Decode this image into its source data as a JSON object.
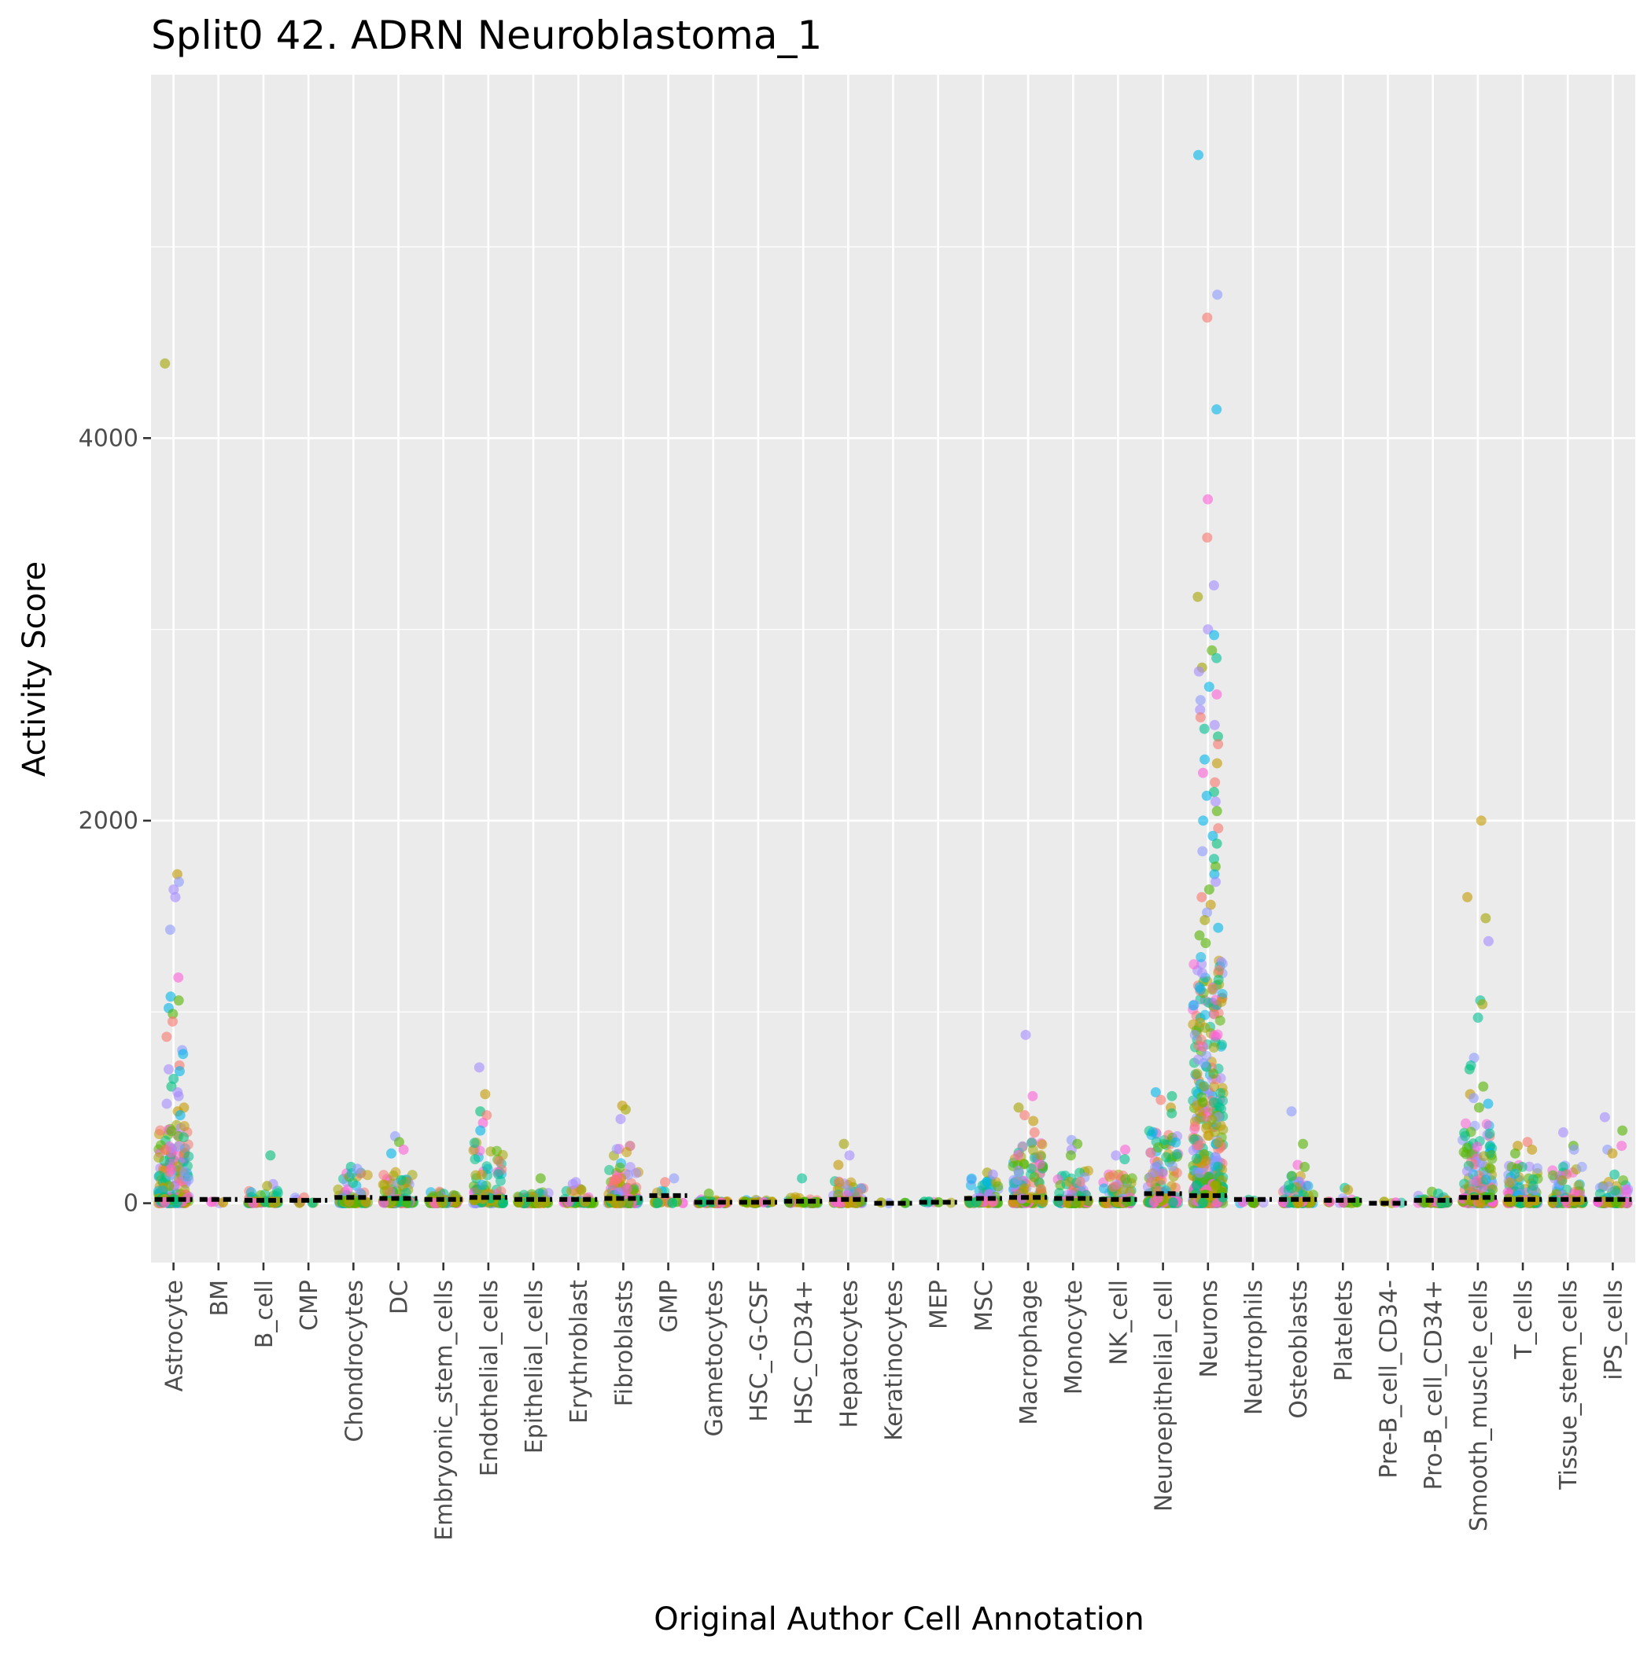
{
  "chart_data": {
    "type": "scatter",
    "subtype": "jitter-strip",
    "title": "Split0 42. ADRN Neuroblastoma_1",
    "xlabel": "Original Author Cell Annotation",
    "ylabel": "Activity Score",
    "ylim": [
      -310,
      5900
    ],
    "yticks": [
      0,
      2000,
      4000
    ],
    "grid": true,
    "legend": "none",
    "panel_background": "#ebebeb",
    "palette": [
      "#f8766d",
      "#c49a00",
      "#53b400",
      "#00c094",
      "#00b6eb",
      "#a58aff",
      "#fb61d7",
      "#8d9bff",
      "#a3a500",
      "#00bf7d"
    ],
    "categories": [
      "Astrocyte",
      "BM",
      "B_cell",
      "CMP",
      "Chondrocytes",
      "DC",
      "Embryonic_stem_cells",
      "Endothelial_cells",
      "Epithelial_cells",
      "Erythroblast",
      "Fibroblasts",
      "GMP",
      "Gametocytes",
      "HSC_-G-CSF",
      "HSC_CD34+",
      "Hepatocytes",
      "Keratinocytes",
      "MEP",
      "MSC",
      "Macrophage",
      "Monocyte",
      "NK_cell",
      "Neuroepithelial_cell",
      "Neurons",
      "Neutrophils",
      "Osteoblasts",
      "Platelets",
      "Pre-B_cell_CD34-",
      "Pro-B_cell_CD34+",
      "Smooth_muscle_cells",
      "T_cells",
      "Tissue_stem_cells",
      "iPS_cells"
    ],
    "series": [
      {
        "name": "Astrocyte",
        "median": 20,
        "dense_max": 420,
        "n_dense": 160,
        "outliers": [
          4390,
          1720,
          1680,
          1640,
          1600,
          1430,
          1180,
          1080,
          1060,
          1020,
          990,
          950,
          870,
          800,
          780,
          720,
          700,
          690,
          650,
          610,
          580,
          560,
          520,
          500,
          480,
          460
        ]
      },
      {
        "name": "BM",
        "median": 20,
        "dense_max": 20,
        "n_dense": 2,
        "outliers": []
      },
      {
        "name": "B_cell",
        "median": 15,
        "dense_max": 70,
        "n_dense": 40,
        "outliers": [
          250,
          100,
          90
        ]
      },
      {
        "name": "CMP",
        "median": 15,
        "dense_max": 30,
        "n_dense": 3,
        "outliers": [
          30
        ]
      },
      {
        "name": "Chondrocytes",
        "median": 30,
        "dense_max": 160,
        "n_dense": 55,
        "outliers": [
          190,
          180
        ]
      },
      {
        "name": "DC",
        "median": 25,
        "dense_max": 170,
        "n_dense": 70,
        "outliers": [
          350,
          320,
          280,
          260
        ]
      },
      {
        "name": "Embryonic_stem_cells",
        "median": 20,
        "dense_max": 60,
        "n_dense": 45,
        "outliers": []
      },
      {
        "name": "Endothelial_cells",
        "median": 30,
        "dense_max": 330,
        "n_dense": 90,
        "outliers": [
          710,
          570,
          480,
          460,
          420,
          380
        ]
      },
      {
        "name": "Epithelial_cells",
        "median": 20,
        "dense_max": 60,
        "n_dense": 50,
        "outliers": [
          130
        ]
      },
      {
        "name": "Erythroblast",
        "median": 20,
        "dense_max": 80,
        "n_dense": 20,
        "outliers": [
          110,
          100
        ]
      },
      {
        "name": "Fibroblasts",
        "median": 25,
        "dense_max": 300,
        "n_dense": 90,
        "outliers": [
          510,
          490,
          440
        ]
      },
      {
        "name": "GMP",
        "median": 40,
        "dense_max": 70,
        "n_dense": 10,
        "outliers": [
          130,
          110
        ]
      },
      {
        "name": "Gametocytes",
        "median": 5,
        "dense_max": 20,
        "n_dense": 25,
        "outliers": [
          50
        ]
      },
      {
        "name": "HSC_-G-CSF",
        "median": 5,
        "dense_max": 20,
        "n_dense": 12,
        "outliers": []
      },
      {
        "name": "HSC_CD34+",
        "median": 10,
        "dense_max": 40,
        "n_dense": 15,
        "outliers": [
          130
        ]
      },
      {
        "name": "Hepatocytes",
        "median": 20,
        "dense_max": 120,
        "n_dense": 55,
        "outliers": [
          310,
          250,
          200
        ]
      },
      {
        "name": "Keratinocytes",
        "median": 0,
        "dense_max": 5,
        "n_dense": 2,
        "outliers": []
      },
      {
        "name": "MEP",
        "median": 5,
        "dense_max": 10,
        "n_dense": 3,
        "outliers": []
      },
      {
        "name": "MSC",
        "median": 25,
        "dense_max": 130,
        "n_dense": 45,
        "outliers": [
          160,
          150
        ]
      },
      {
        "name": "Macrophage",
        "median": 30,
        "dense_max": 320,
        "n_dense": 110,
        "outliers": [
          880,
          560,
          500,
          460,
          430,
          370
        ]
      },
      {
        "name": "Monocyte",
        "median": 25,
        "dense_max": 170,
        "n_dense": 70,
        "outliers": [
          330,
          310,
          280,
          250
        ]
      },
      {
        "name": "NK_cell",
        "median": 20,
        "dense_max": 150,
        "n_dense": 60,
        "outliers": [
          280,
          250,
          230
        ]
      },
      {
        "name": "Neuroepithelial_cell",
        "median": 50,
        "dense_max": 380,
        "n_dense": 120,
        "outliers": [
          580,
          560,
          540,
          500,
          470
        ]
      },
      {
        "name": "Neurons",
        "median": 40,
        "dense_max": 1300,
        "n_dense": 400,
        "outliers": [
          5480,
          4750,
          4630,
          4150,
          3680,
          3480,
          3230,
          3170,
          3000,
          2970,
          2890,
          2850,
          2800,
          2780,
          2700,
          2660,
          2630,
          2580,
          2540,
          2500,
          2480,
          2440,
          2400,
          2320,
          2300,
          2250,
          2200,
          2150,
          2130,
          2100,
          2050,
          2000,
          1960,
          1920,
          1880,
          1840,
          1800,
          1760,
          1720,
          1680,
          1640,
          1600,
          1560,
          1520,
          1480,
          1440,
          1400,
          1360
        ]
      },
      {
        "name": "Neutrophils",
        "median": 20,
        "dense_max": 20,
        "n_dense": 5,
        "outliers": []
      },
      {
        "name": "Osteoblasts",
        "median": 20,
        "dense_max": 150,
        "n_dense": 55,
        "outliers": [
          480,
          310,
          200,
          190
        ]
      },
      {
        "name": "Platelets",
        "median": 15,
        "dense_max": 30,
        "n_dense": 8,
        "outliers": [
          80,
          70
        ]
      },
      {
        "name": "Pre-B_cell_CD34-",
        "median": 0,
        "dense_max": 5,
        "n_dense": 2,
        "outliers": []
      },
      {
        "name": "Pro-B_cell_CD34+",
        "median": 15,
        "dense_max": 40,
        "n_dense": 25,
        "outliers": [
          60,
          50
        ]
      },
      {
        "name": "Smooth_muscle_cells",
        "median": 30,
        "dense_max": 420,
        "n_dense": 130,
        "outliers": [
          2000,
          1600,
          1490,
          1370,
          1060,
          1040,
          970,
          760,
          720,
          700,
          610,
          570,
          550,
          520,
          500
        ]
      },
      {
        "name": "T_cells",
        "median": 20,
        "dense_max": 200,
        "n_dense": 80,
        "outliers": [
          320,
          300,
          280,
          260
        ]
      },
      {
        "name": "Tissue_stem_cells",
        "median": 20,
        "dense_max": 200,
        "n_dense": 80,
        "outliers": [
          370,
          300,
          280
        ]
      },
      {
        "name": "iPS_cells",
        "median": 20,
        "dense_max": 120,
        "n_dense": 45,
        "outliers": [
          450,
          380,
          300,
          280,
          260,
          150
        ]
      }
    ]
  }
}
